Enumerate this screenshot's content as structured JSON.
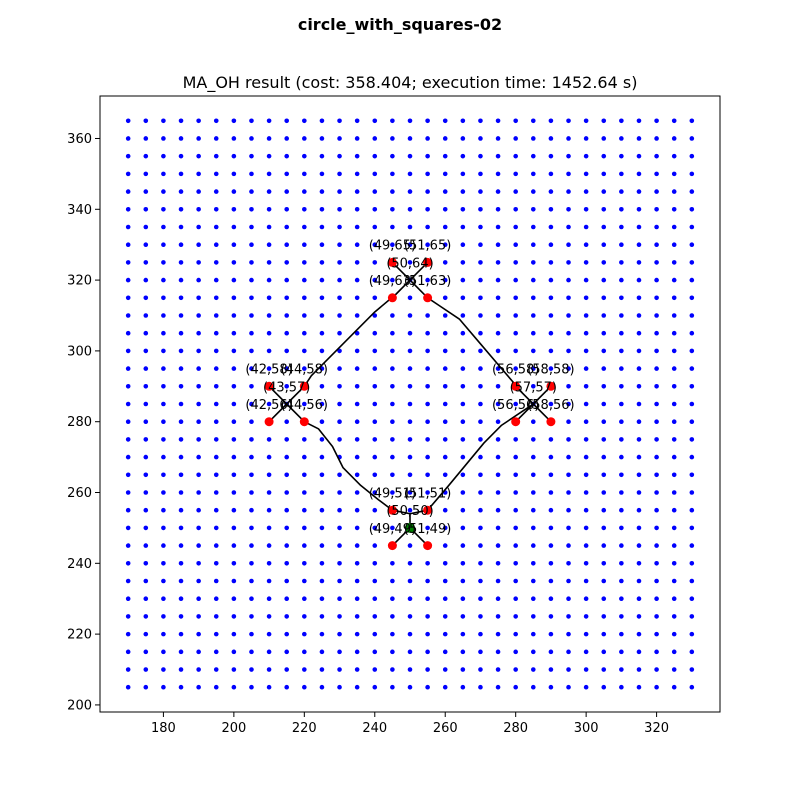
{
  "suptitle": "circle_with_squares-02",
  "chart_data": {
    "type": "scatter",
    "title": "MA_OH result (cost: 358.404; execution time: 1452.64 s)",
    "xlabel": "",
    "ylabel": "",
    "xlim": [
      162,
      338
    ],
    "ylim": [
      198,
      372
    ],
    "xticks": [
      180,
      200,
      220,
      240,
      260,
      280,
      300,
      320
    ],
    "yticks": [
      200,
      220,
      240,
      260,
      280,
      300,
      320,
      340,
      360
    ],
    "grid": false,
    "colors": {
      "grid_points": "#0000ff",
      "targets": "#ff0000",
      "path": "#000000",
      "start": "#008000"
    },
    "grid_points": {
      "x_start": 170,
      "x_end": 330,
      "y_start": 205,
      "y_end": 365,
      "step": 5
    },
    "targets": [
      [
        245,
        325
      ],
      [
        255,
        325
      ],
      [
        245,
        315
      ],
      [
        255,
        315
      ],
      [
        210,
        290
      ],
      [
        220,
        290
      ],
      [
        210,
        280
      ],
      [
        220,
        280
      ],
      [
        280,
        290
      ],
      [
        290,
        290
      ],
      [
        280,
        280
      ],
      [
        290,
        280
      ],
      [
        245,
        255
      ],
      [
        255,
        255
      ],
      [
        245,
        245
      ],
      [
        255,
        245
      ]
    ],
    "start_point": [
      250,
      250
    ],
    "path": [
      [
        250,
        250
      ],
      [
        255,
        245
      ],
      [
        250,
        250
      ],
      [
        245,
        245
      ],
      [
        250,
        250
      ],
      [
        250,
        254
      ],
      [
        245,
        255
      ],
      [
        250,
        254
      ],
      [
        255,
        255
      ],
      [
        261,
        262
      ],
      [
        266,
        268
      ],
      [
        271,
        274
      ],
      [
        276,
        279
      ],
      [
        282,
        283
      ],
      [
        285,
        285
      ],
      [
        280,
        280
      ],
      [
        285,
        285
      ],
      [
        290,
        280
      ],
      [
        285,
        285
      ],
      [
        290,
        290
      ],
      [
        285,
        285
      ],
      [
        280,
        290
      ],
      [
        285,
        285
      ],
      [
        282,
        288
      ],
      [
        276,
        295
      ],
      [
        270,
        302
      ],
      [
        264,
        309
      ],
      [
        258,
        313
      ],
      [
        255,
        315
      ],
      [
        250,
        320
      ],
      [
        245,
        315
      ],
      [
        250,
        320
      ],
      [
        255,
        325
      ],
      [
        250,
        320
      ],
      [
        245,
        325
      ],
      [
        250,
        320
      ],
      [
        246,
        316
      ],
      [
        240,
        311
      ],
      [
        234,
        305
      ],
      [
        228,
        299
      ],
      [
        222,
        293
      ],
      [
        220,
        290
      ],
      [
        215,
        285
      ],
      [
        210,
        290
      ],
      [
        215,
        285
      ],
      [
        210,
        280
      ],
      [
        215,
        285
      ],
      [
        220,
        280
      ],
      [
        224,
        278
      ],
      [
        228,
        273
      ],
      [
        231,
        267
      ],
      [
        236,
        262
      ],
      [
        241,
        258
      ],
      [
        245,
        255
      ],
      [
        250,
        254
      ]
    ],
    "annotations": [
      {
        "text": "(49,65)",
        "x": 245,
        "y": 330
      },
      {
        "text": "(51,65)",
        "x": 255,
        "y": 330
      },
      {
        "text": "(50,64)",
        "x": 250,
        "y": 325
      },
      {
        "text": "(49,63)",
        "x": 245,
        "y": 320
      },
      {
        "text": "(51,63)",
        "x": 255,
        "y": 320
      },
      {
        "text": "(42,58)",
        "x": 210,
        "y": 295
      },
      {
        "text": "(44,58)",
        "x": 220,
        "y": 295
      },
      {
        "text": "(43,57)",
        "x": 215,
        "y": 290
      },
      {
        "text": "(42,56)",
        "x": 210,
        "y": 285
      },
      {
        "text": "(44,56)",
        "x": 220,
        "y": 285
      },
      {
        "text": "(56,58)",
        "x": 280,
        "y": 295
      },
      {
        "text": "(58,58)",
        "x": 290,
        "y": 295
      },
      {
        "text": "(57,57)",
        "x": 285,
        "y": 290
      },
      {
        "text": "(56,56)",
        "x": 280,
        "y": 285
      },
      {
        "text": "(58,56)",
        "x": 290,
        "y": 285
      },
      {
        "text": "(49,51)",
        "x": 245,
        "y": 260
      },
      {
        "text": "(51,51)",
        "x": 255,
        "y": 260
      },
      {
        "text": "(50,50)",
        "x": 250,
        "y": 255
      },
      {
        "text": "(49,49)",
        "x": 245,
        "y": 250
      },
      {
        "text": "(51,49)",
        "x": 255,
        "y": 250
      }
    ]
  }
}
